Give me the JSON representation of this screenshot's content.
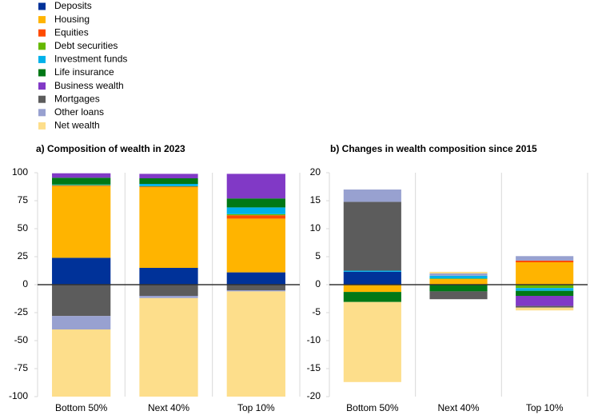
{
  "chart_data": [
    {
      "type": "stacked-bar",
      "title": "a) Composition of wealth in 2023",
      "categories": [
        "Bottom 50%",
        "Next 40%",
        "Top 10%"
      ],
      "ylim": [
        -100,
        100
      ],
      "yticks": [
        100,
        75,
        50,
        25,
        0,
        -25,
        -50,
        -75,
        -100
      ],
      "series": [
        {
          "name": "Deposits",
          "color": "#003299",
          "values": [
            24,
            15,
            11
          ]
        },
        {
          "name": "Housing",
          "color": "#ffb400",
          "values": [
            64,
            72,
            48
          ]
        },
        {
          "name": "Equities",
          "color": "#ff4b00",
          "values": [
            0.5,
            0.5,
            3
          ]
        },
        {
          "name": "Debt securities",
          "color": "#65b800",
          "values": [
            0.5,
            0.5,
            1
          ]
        },
        {
          "name": "Investment funds",
          "color": "#00b1ea",
          "values": [
            0.5,
            2,
            6
          ]
        },
        {
          "name": "Life insurance",
          "color": "#007816",
          "values": [
            6,
            5,
            8
          ]
        },
        {
          "name": "Business wealth",
          "color": "#8139c6",
          "values": [
            4,
            4,
            22
          ]
        },
        {
          "name": "Mortgages",
          "color": "#5c5c5c",
          "values": [
            -28,
            -10,
            -5
          ]
        },
        {
          "name": "Other loans",
          "color": "#98a1d0",
          "values": [
            -12,
            -2,
            -1
          ]
        },
        {
          "name": "Net wealth",
          "color": "#fdde8b",
          "values": [
            -60,
            -88,
            -94
          ]
        }
      ]
    },
    {
      "type": "stacked-bar",
      "title": "b) Changes in wealth composition since 2015",
      "categories": [
        "Bottom 50%",
        "Next 40%",
        "Top 10%"
      ],
      "ylim": [
        -20,
        20
      ],
      "yticks": [
        20,
        15,
        10,
        5,
        0,
        -5,
        -10,
        -15,
        -20
      ],
      "series": [
        {
          "name": "Deposits",
          "color": "#003299",
          "values": [
            2.3,
            0,
            0
          ]
        },
        {
          "name": "Housing",
          "color": "#ffb400",
          "values": [
            -1.3,
            1.0,
            4.0
          ]
        },
        {
          "name": "Equities",
          "color": "#ff4b00",
          "values": [
            0,
            0,
            0.3
          ]
        },
        {
          "name": "Debt securities",
          "color": "#65b800",
          "values": [
            0,
            0.1,
            -0.6
          ]
        },
        {
          "name": "Investment funds",
          "color": "#00b1ea",
          "values": [
            0.2,
            0.5,
            -0.5
          ]
        },
        {
          "name": "Life insurance",
          "color": "#007816",
          "values": [
            -1.8,
            -1.2,
            -0.9
          ]
        },
        {
          "name": "Business wealth",
          "color": "#8139c6",
          "values": [
            0,
            0,
            -1.8
          ]
        },
        {
          "name": "Mortgages",
          "color": "#5c5c5c",
          "values": [
            12.3,
            -1.4,
            -0.3
          ]
        },
        {
          "name": "Other loans",
          "color": "#98a1d0",
          "values": [
            2.2,
            0.4,
            0.8
          ]
        },
        {
          "name": "Net wealth",
          "color": "#fdde8b",
          "values": [
            -14.3,
            0.3,
            -0.5
          ]
        }
      ]
    }
  ]
}
